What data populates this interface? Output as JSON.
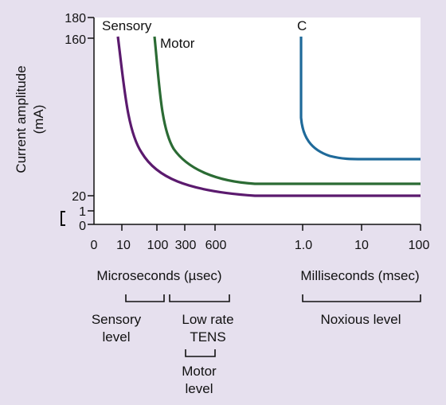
{
  "chart_data": {
    "type": "line",
    "ylabel_line1": "Current amplitude",
    "ylabel_line2": "(mA)",
    "y_ticks": [
      "180",
      "160",
      "20",
      "1",
      "0"
    ],
    "x_ticks_micro": [
      "0",
      "10",
      "100",
      "300",
      "600"
    ],
    "x_ticks_milli": [
      "1.0",
      "10",
      "100"
    ],
    "xlabel_micro": "Microseconds (µsec)",
    "xlabel_milli": "Milliseconds (msec)",
    "series": [
      {
        "name": "Sensory",
        "color": "#5b1a6e"
      },
      {
        "name": "Motor",
        "color": "#2b6b34"
      },
      {
        "name": "C",
        "color": "#1f6a9a"
      }
    ],
    "ranges": [
      {
        "label_lines": [
          "Sensory",
          "level"
        ]
      },
      {
        "label_lines": [
          "Low rate",
          "TENS"
        ]
      },
      {
        "label_lines": [
          "Motor",
          "level"
        ]
      },
      {
        "label_lines": [
          "Noxious level"
        ]
      }
    ]
  }
}
